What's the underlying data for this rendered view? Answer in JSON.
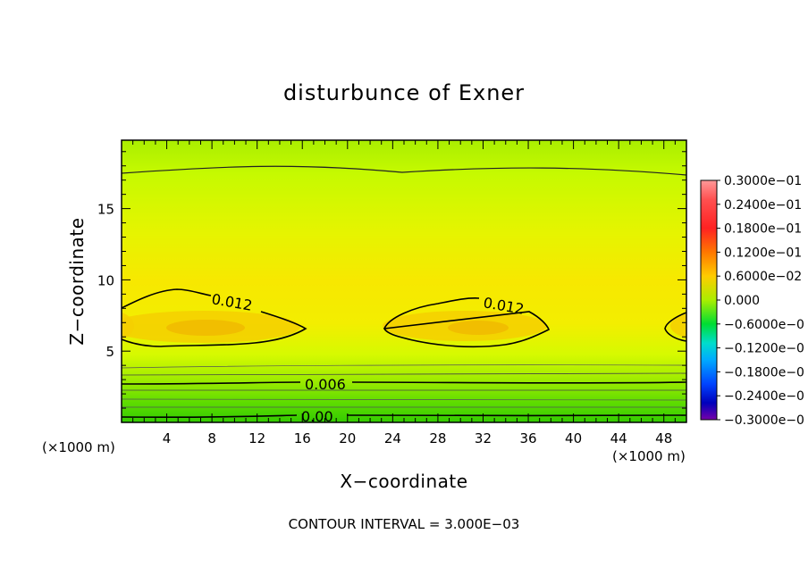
{
  "chart_data": {
    "type": "contour",
    "title": "disturbunce of Exner",
    "xlabel": "X−coordinate",
    "ylabel": "Z−coordinate",
    "x_unit": "(×1000 m)",
    "z_unit": "(×1000 m)",
    "xlim": [
      0,
      50
    ],
    "ylim": [
      0,
      19.8
    ],
    "x_ticks": [
      "4",
      "8",
      "12",
      "16",
      "20",
      "24",
      "28",
      "32",
      "36",
      "40",
      "44",
      "48"
    ],
    "x_tick_values": [
      4,
      8,
      12,
      16,
      20,
      24,
      28,
      32,
      36,
      40,
      44,
      48
    ],
    "y_ticks": [
      "5",
      "10",
      "15"
    ],
    "y_tick_values": [
      5,
      10,
      15
    ],
    "contour_interval_text": "CONTOUR INTERVAL = 3.000E−03",
    "contour_interval": 0.003,
    "contour_labels": [
      {
        "text": "0.012",
        "level": 0.012
      },
      {
        "text": "0.012",
        "level": 0.012
      },
      {
        "text": "0.006",
        "level": 0.006
      },
      {
        "text": "0.00",
        "level": 0.0
      }
    ],
    "colorbar": {
      "range": [
        -0.03,
        0.03
      ],
      "labels": [
        "0.3000e−01",
        "0.2400e−01",
        "0.1800e−01",
        "0.1200e−01",
        "0.6000e−02",
        "0.000",
        "−0.6000e−0",
        "−0.1200e−0",
        "−0.1800e−0",
        "−0.2400e−0",
        "−0.3000e−0"
      ],
      "colors": [
        "#ff9999",
        "#ff3333",
        "#ff6600",
        "#ffaa00",
        "#ccff00",
        "#00dd00",
        "#00ddaa",
        "#00aaff",
        "#0055ff",
        "#0000cc",
        "#7700aa"
      ]
    }
  }
}
